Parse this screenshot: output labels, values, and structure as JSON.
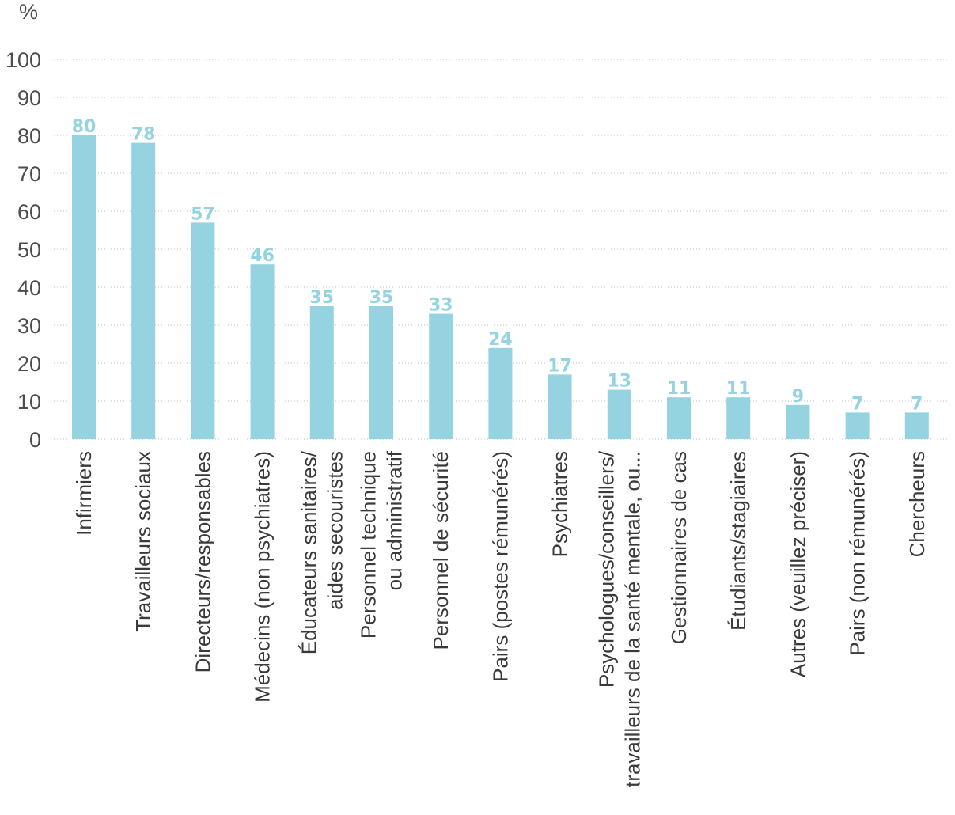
{
  "chart_data": {
    "type": "bar",
    "unit_label": "%",
    "ylim": [
      0,
      100
    ],
    "yticks": [
      0,
      10,
      20,
      30,
      40,
      50,
      60,
      70,
      80,
      90,
      100
    ],
    "grid": true,
    "bar_color": "#96d3e1",
    "label_color": "#96d3e1",
    "categories": [
      [
        "Infirmiers"
      ],
      [
        "Travailleurs sociaux"
      ],
      [
        "Directeurs/responsables"
      ],
      [
        "Médecins (non psychiatres)"
      ],
      [
        "Éducateurs sanitaires/",
        "aides secouristes"
      ],
      [
        "Personnel technique",
        "ou administratif"
      ],
      [
        "Personnel de sécurité"
      ],
      [
        "Pairs (postes rémunérés)"
      ],
      [
        "Psychiatres"
      ],
      [
        "Psychologues/conseillers/",
        "travailleurs de la santé mentale, ou..."
      ],
      [
        "Gestionnaires de cas"
      ],
      [
        "Étudiants/stagiaires"
      ],
      [
        "Autres (veuillez préciser)"
      ],
      [
        "Pairs (non rémunérés)"
      ],
      [
        "Chercheurs"
      ]
    ],
    "values": [
      80,
      78,
      57,
      46,
      35,
      35,
      33,
      24,
      17,
      13,
      11,
      11,
      9,
      7,
      7
    ]
  }
}
